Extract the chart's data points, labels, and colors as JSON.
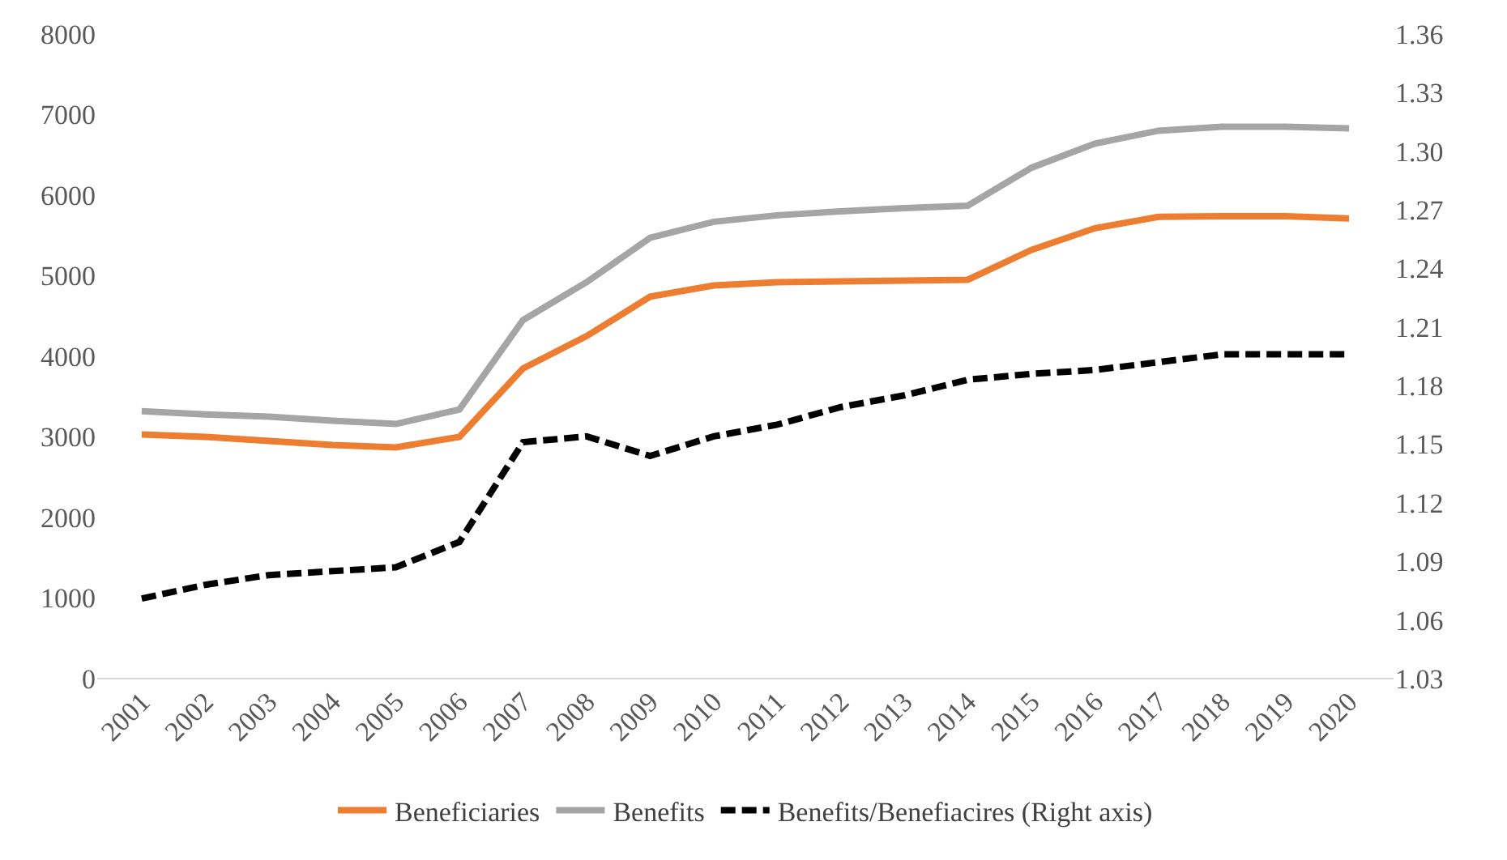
{
  "chart_data": {
    "type": "line",
    "categories": [
      "2001",
      "2002",
      "2003",
      "2004",
      "2005",
      "2006",
      "2007",
      "2008",
      "2009",
      "2010",
      "2011",
      "2012",
      "2013",
      "2014",
      "2015",
      "2016",
      "2017",
      "2018",
      "2019",
      "2020"
    ],
    "series": [
      {
        "name": "Beneficiaries",
        "color": "#ed7d31",
        "values": [
          3030,
          3000,
          2950,
          2900,
          2870,
          3000,
          3850,
          4250,
          4740,
          4880,
          4920,
          4930,
          4940,
          4950,
          5320,
          5590,
          5730,
          5740,
          5740,
          5710
        ]
      },
      {
        "name": "Benefits",
        "color": "#a5a5a5",
        "values": [
          3320,
          3280,
          3250,
          3200,
          3160,
          3340,
          4450,
          4920,
          5470,
          5670,
          5750,
          5800,
          5840,
          5870,
          6340,
          6640,
          6800,
          6850,
          6850,
          6830
        ]
      },
      {
        "name": "Benefits/Benefiacires (Right axis)",
        "color": "#000000",
        "axis": "y2",
        "line_style": "dashed",
        "values": [
          1.071,
          1.078,
          1.083,
          1.085,
          1.087,
          1.1,
          1.151,
          1.154,
          1.144,
          1.154,
          1.16,
          1.169,
          1.175,
          1.183,
          1.186,
          1.188,
          1.192,
          1.196,
          1.196,
          1.196
        ]
      }
    ],
    "ylim": [
      0,
      8000
    ],
    "yticks": [
      0,
      1000,
      2000,
      3000,
      4000,
      5000,
      6000,
      7000,
      8000
    ],
    "y2lim": [
      1.03,
      1.36
    ],
    "y2ticks": [
      1.03,
      1.06,
      1.09,
      1.12,
      1.15,
      1.18,
      1.21,
      1.24,
      1.27,
      {
        "value": 1.3,
        "label": "1.30"
      },
      1.33,
      1.36
    ],
    "legend": "bottom",
    "marker": "none",
    "line_style": "solid"
  }
}
